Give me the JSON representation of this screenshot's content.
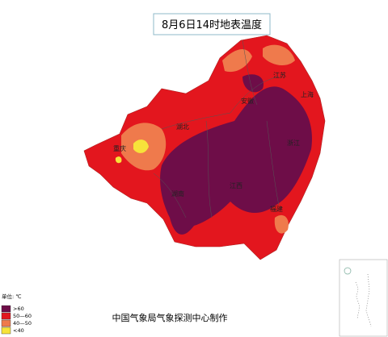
{
  "header": {
    "title": "8月6日14时地表温度"
  },
  "map": {
    "labels": [
      "江苏",
      "安徽",
      "上海",
      "湖北",
      "重庆",
      "浙江",
      "湖南",
      "江西",
      "福建"
    ]
  },
  "legend": {
    "unit": "单位: ℃",
    "items": [
      {
        "label": ">60",
        "color": "#6e0d48"
      },
      {
        "label": "50—60",
        "color": "#e3161e"
      },
      {
        "label": "40—50",
        "color": "#ef7a4c"
      },
      {
        "label": "<40",
        "color": "#f7e33a"
      }
    ]
  },
  "footer": {
    "credit": "中国气象局气象探测中心制作"
  }
}
